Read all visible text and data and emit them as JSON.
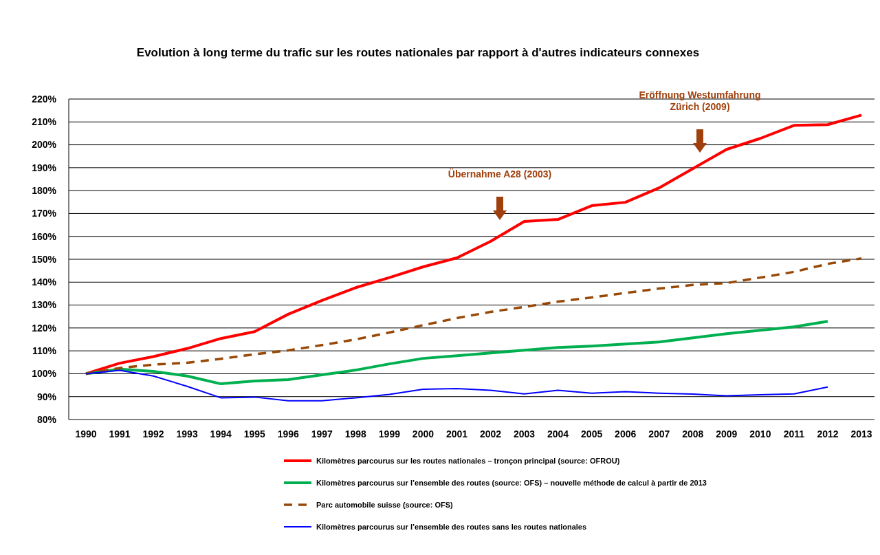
{
  "chart_data": {
    "type": "line",
    "title": "Evolution à long terme du trafic sur les routes nationales par rapport à d'autres indicateurs connexes",
    "categories": [
      "1990",
      "1991",
      "1992",
      "1993",
      "1994",
      "1995",
      "1996",
      "1997",
      "1998",
      "1999",
      "2000",
      "2001",
      "2002",
      "2003",
      "2004",
      "2005",
      "2006",
      "2007",
      "2008",
      "2009",
      "2010",
      "2011",
      "2012",
      "2013"
    ],
    "series": [
      {
        "name": "Kilomètres parcourus sur les routes nationales – tronçon principal (source: OFROU)",
        "color": "#ff0000",
        "values": [
          100,
          104.6,
          107.5,
          111,
          115.4,
          118.4,
          126,
          132,
          137.6,
          142,
          146.7,
          150.6,
          157.8,
          166.5,
          167.4,
          173.4,
          174.9,
          181.2,
          189.6,
          198,
          202.8,
          208.5,
          208.8,
          213
        ]
      },
      {
        "name": "Kilomètres parcourus sur l’ensemble des routes (source: OFS) – nouvelle méthode de calcul à partir de 2013",
        "color": "#00b050",
        "values": [
          100,
          102,
          101,
          99,
          95.6,
          96.8,
          97.4,
          99.5,
          101.6,
          104.3,
          106.7,
          107.9,
          109.1,
          110.3,
          111.5,
          112.1,
          113,
          113.9,
          115.7,
          117.5,
          119,
          120.5,
          122.9,
          null
        ]
      },
      {
        "name": "Parc automobile suisse (source: OFS)",
        "color": "#984807",
        "line_style": "dashed",
        "values": [
          100,
          102.5,
          104,
          104.8,
          106.5,
          108.5,
          110.2,
          112.5,
          115,
          118,
          121.2,
          124.3,
          127,
          129.2,
          131.5,
          133.3,
          135.3,
          137.2,
          138.8,
          139.6,
          142,
          144.5,
          148,
          150.4
        ]
      },
      {
        "name": "Kilomètres parcourus sur l’ensemble des routes sans les routes nationales",
        "color": "#0000ff",
        "values": [
          100,
          101.5,
          99,
          94.5,
          89.5,
          89.8,
          88.2,
          88.2,
          89.5,
          91,
          93.2,
          93.5,
          92.8,
          91.2,
          92.8,
          91.5,
          92.2,
          91.5,
          91.1,
          90.4,
          90.8,
          91.2,
          94.2,
          null
        ]
      }
    ],
    "ylim": [
      80,
      220
    ],
    "yticks": [
      {
        "value": 80,
        "label": "80%"
      },
      {
        "value": 90,
        "label": "90%"
      },
      {
        "value": 100,
        "label": "100%"
      },
      {
        "value": 110,
        "label": "110%"
      },
      {
        "value": 120,
        "label": "120%"
      },
      {
        "value": 130,
        "label": "130%"
      },
      {
        "value": 140,
        "label": "140%"
      },
      {
        "value": 150,
        "label": "150%"
      },
      {
        "value": 160,
        "label": "160%"
      },
      {
        "value": 170,
        "label": "170%"
      },
      {
        "value": 180,
        "label": "180%"
      },
      {
        "value": 190,
        "label": "190%"
      },
      {
        "value": 200,
        "label": "200%"
      },
      {
        "value": 210,
        "label": "210%"
      },
      {
        "value": 220,
        "label": "220%"
      }
    ],
    "grid": "y",
    "legend": "bottom",
    "marker": "none",
    "line_style": "solid",
    "annotations": [
      "Übernahme A28 (2003)",
      "Eröffnung Westumfahrung Zürich (2009)"
    ]
  }
}
